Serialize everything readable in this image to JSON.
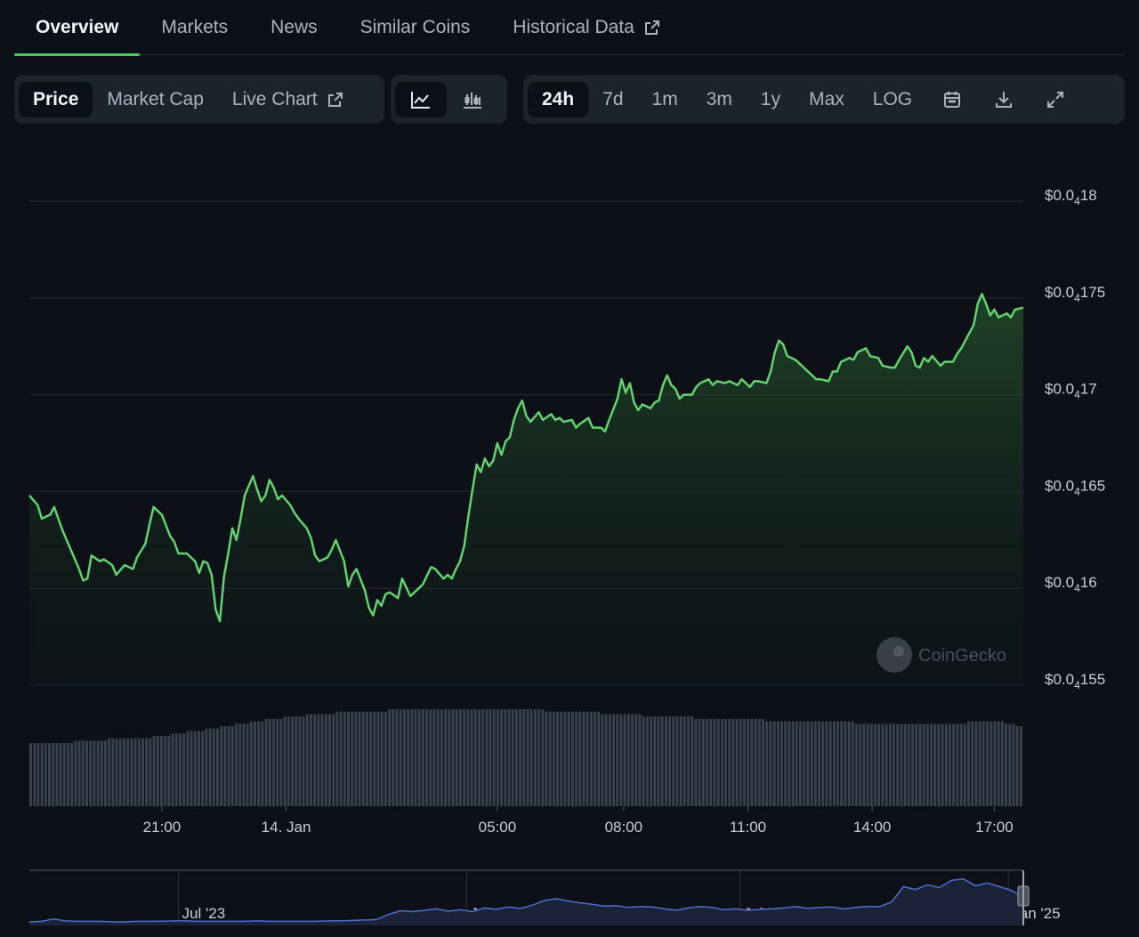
{
  "tabs": [
    {
      "label": "Overview",
      "active": true
    },
    {
      "label": "Markets"
    },
    {
      "label": "News"
    },
    {
      "label": "Similar Coins"
    },
    {
      "label": "Historical Data",
      "external": true
    }
  ],
  "chart_type_buttons": {
    "price": "Price",
    "market_cap": "Market Cap",
    "live_chart": "Live Chart"
  },
  "view_icons": [
    "line-chart-icon",
    "candlestick-icon"
  ],
  "range_buttons": {
    "r24h": "24h",
    "r7d": "7d",
    "r1m": "1m",
    "r3m": "3m",
    "r1y": "1y",
    "max": "Max",
    "log": "LOG"
  },
  "tool_icons": [
    "calendar-icon",
    "download-icon",
    "expand-icon"
  ],
  "watermark": "CoinGecko",
  "colors": {
    "line": "#62d26f",
    "accent": "#4bcc5a",
    "volume": "#3a4250",
    "navigator": "#4a6fd0"
  },
  "chart_data": {
    "type": "line",
    "y_ticks": [
      {
        "pre": "$0.0",
        "sub": "4",
        "post": "18",
        "value": 1.8e-05
      },
      {
        "pre": "$0.0",
        "sub": "4",
        "post": "175",
        "value": 1.75e-05
      },
      {
        "pre": "$0.0",
        "sub": "4",
        "post": "17",
        "value": 1.7e-05
      },
      {
        "pre": "$0.0",
        "sub": "4",
        "post": "165",
        "value": 1.65e-05
      },
      {
        "pre": "$0.0",
        "sub": "4",
        "post": "16",
        "value": 1.6e-05
      },
      {
        "pre": "$0.0",
        "sub": "4",
        "post": "155",
        "value": 1.55e-05
      }
    ],
    "ylim": [
      1.55e-05,
      1.8e-05
    ],
    "x_ticks": [
      {
        "label": "21:00",
        "t": 3.2
      },
      {
        "label": "14. Jan",
        "t": 6.2
      },
      {
        "label": "05:00",
        "t": 11.3
      },
      {
        "label": "08:00",
        "t": 14.35
      },
      {
        "label": "11:00",
        "t": 17.35
      },
      {
        "label": "14:00",
        "t": 20.35
      },
      {
        "label": "17:00",
        "t": 23.3
      }
    ],
    "xlim": [
      0,
      24
    ],
    "series": [
      {
        "values": [
          [
            0.0,
            16.48
          ],
          [
            0.2,
            16.43
          ],
          [
            0.3,
            16.36
          ],
          [
            0.5,
            16.38
          ],
          [
            0.6,
            16.42
          ],
          [
            0.8,
            16.3
          ],
          [
            1.1,
            16.15
          ],
          [
            1.2,
            16.1
          ],
          [
            1.3,
            16.04
          ],
          [
            1.4,
            16.05
          ],
          [
            1.5,
            16.17
          ],
          [
            1.7,
            16.14
          ],
          [
            1.8,
            16.15
          ],
          [
            2.0,
            16.12
          ],
          [
            2.1,
            16.07
          ],
          [
            2.3,
            16.12
          ],
          [
            2.5,
            16.1
          ],
          [
            2.6,
            16.16
          ],
          [
            2.8,
            16.23
          ],
          [
            2.9,
            16.33
          ],
          [
            3.0,
            16.42
          ],
          [
            3.2,
            16.38
          ],
          [
            3.4,
            16.27
          ],
          [
            3.5,
            16.24
          ],
          [
            3.6,
            16.18
          ],
          [
            3.8,
            16.18
          ],
          [
            4.0,
            16.14
          ],
          [
            4.1,
            16.08
          ],
          [
            4.2,
            16.14
          ],
          [
            4.3,
            16.13
          ],
          [
            4.4,
            16.07
          ],
          [
            4.5,
            15.89
          ],
          [
            4.6,
            15.83
          ],
          [
            4.7,
            16.06
          ],
          [
            4.8,
            16.18
          ],
          [
            4.9,
            16.31
          ],
          [
            5.0,
            16.25
          ],
          [
            5.1,
            16.36
          ],
          [
            5.2,
            16.48
          ],
          [
            5.4,
            16.58
          ],
          [
            5.5,
            16.51
          ],
          [
            5.6,
            16.45
          ],
          [
            5.7,
            16.48
          ],
          [
            5.8,
            16.56
          ],
          [
            5.9,
            16.52
          ],
          [
            6.0,
            16.46
          ],
          [
            6.1,
            16.48
          ],
          [
            6.3,
            16.43
          ],
          [
            6.4,
            16.39
          ],
          [
            6.5,
            16.36
          ],
          [
            6.7,
            16.31
          ],
          [
            6.8,
            16.26
          ],
          [
            6.9,
            16.17
          ],
          [
            7.0,
            16.14
          ],
          [
            7.2,
            16.16
          ],
          [
            7.3,
            16.2
          ],
          [
            7.4,
            16.25
          ],
          [
            7.6,
            16.14
          ],
          [
            7.7,
            16.01
          ],
          [
            7.8,
            16.07
          ],
          [
            7.9,
            16.1
          ],
          [
            8.1,
            15.99
          ],
          [
            8.2,
            15.9
          ],
          [
            8.3,
            15.86
          ],
          [
            8.4,
            15.94
          ],
          [
            8.5,
            15.91
          ],
          [
            8.6,
            15.97
          ],
          [
            8.7,
            15.98
          ],
          [
            8.9,
            15.95
          ],
          [
            9.0,
            16.05
          ],
          [
            9.2,
            15.96
          ],
          [
            9.3,
            15.98
          ],
          [
            9.4,
            16.0
          ],
          [
            9.5,
            16.02
          ],
          [
            9.7,
            16.11
          ],
          [
            9.8,
            16.1
          ],
          [
            10.0,
            16.05
          ],
          [
            10.1,
            16.07
          ],
          [
            10.2,
            16.05
          ],
          [
            10.3,
            16.1
          ],
          [
            10.4,
            16.14
          ],
          [
            10.5,
            16.22
          ],
          [
            10.6,
            16.37
          ],
          [
            10.7,
            16.51
          ],
          [
            10.8,
            16.64
          ],
          [
            10.9,
            16.6
          ],
          [
            11.0,
            16.67
          ],
          [
            11.1,
            16.63
          ],
          [
            11.2,
            16.66
          ],
          [
            11.3,
            16.75
          ],
          [
            11.4,
            16.69
          ],
          [
            11.5,
            16.76
          ],
          [
            11.6,
            16.78
          ],
          [
            11.7,
            16.87
          ],
          [
            11.8,
            16.93
          ],
          [
            11.9,
            16.97
          ],
          [
            12.0,
            16.89
          ],
          [
            12.1,
            16.86
          ],
          [
            12.3,
            16.91
          ],
          [
            12.4,
            16.87
          ],
          [
            12.6,
            16.9
          ],
          [
            12.7,
            16.87
          ],
          [
            12.8,
            16.88
          ],
          [
            12.9,
            16.86
          ],
          [
            13.1,
            16.87
          ],
          [
            13.2,
            16.83
          ],
          [
            13.3,
            16.85
          ],
          [
            13.5,
            16.88
          ],
          [
            13.6,
            16.83
          ],
          [
            13.8,
            16.83
          ],
          [
            13.9,
            16.81
          ],
          [
            14.0,
            16.87
          ],
          [
            14.2,
            16.98
          ],
          [
            14.3,
            17.08
          ],
          [
            14.4,
            17.01
          ],
          [
            14.5,
            17.06
          ],
          [
            14.6,
            16.96
          ],
          [
            14.7,
            16.92
          ],
          [
            14.8,
            16.95
          ],
          [
            15.0,
            16.93
          ],
          [
            15.1,
            16.96
          ],
          [
            15.2,
            16.97
          ],
          [
            15.3,
            17.05
          ],
          [
            15.4,
            17.1
          ],
          [
            15.5,
            17.05
          ],
          [
            15.6,
            17.03
          ],
          [
            15.7,
            16.98
          ],
          [
            15.8,
            17.0
          ],
          [
            16.0,
            17.0
          ],
          [
            16.1,
            17.04
          ],
          [
            16.2,
            17.06
          ],
          [
            16.3,
            17.07
          ],
          [
            16.4,
            17.08
          ],
          [
            16.5,
            17.05
          ],
          [
            16.6,
            17.07
          ],
          [
            16.8,
            17.06
          ],
          [
            16.9,
            17.07
          ],
          [
            17.1,
            17.05
          ],
          [
            17.2,
            17.08
          ],
          [
            17.4,
            17.04
          ],
          [
            17.5,
            17.07
          ],
          [
            17.6,
            17.07
          ],
          [
            17.8,
            17.06
          ],
          [
            17.9,
            17.12
          ],
          [
            18.0,
            17.22
          ],
          [
            18.1,
            17.28
          ],
          [
            18.2,
            17.26
          ],
          [
            18.3,
            17.2
          ],
          [
            18.5,
            17.18
          ],
          [
            18.6,
            17.16
          ],
          [
            18.8,
            17.12
          ],
          [
            19.0,
            17.08
          ],
          [
            19.1,
            17.08
          ],
          [
            19.3,
            17.07
          ],
          [
            19.4,
            17.12
          ],
          [
            19.5,
            17.12
          ],
          [
            19.6,
            17.17
          ],
          [
            19.8,
            17.19
          ],
          [
            19.9,
            17.18
          ],
          [
            20.0,
            17.22
          ],
          [
            20.2,
            17.24
          ],
          [
            20.3,
            17.2
          ],
          [
            20.5,
            17.19
          ],
          [
            20.6,
            17.15
          ],
          [
            20.8,
            17.14
          ],
          [
            20.9,
            17.14
          ],
          [
            21.0,
            17.18
          ],
          [
            21.2,
            17.25
          ],
          [
            21.3,
            17.22
          ],
          [
            21.4,
            17.15
          ],
          [
            21.5,
            17.14
          ],
          [
            21.6,
            17.19
          ],
          [
            21.7,
            17.17
          ],
          [
            21.8,
            17.2
          ],
          [
            22.0,
            17.15
          ],
          [
            22.1,
            17.17
          ],
          [
            22.3,
            17.17
          ],
          [
            22.4,
            17.21
          ],
          [
            22.5,
            17.24
          ],
          [
            22.6,
            17.28
          ],
          [
            22.8,
            17.36
          ],
          [
            22.9,
            17.47
          ],
          [
            23.0,
            17.52
          ],
          [
            23.1,
            17.47
          ],
          [
            23.2,
            17.41
          ],
          [
            23.3,
            17.44
          ],
          [
            23.4,
            17.4
          ],
          [
            23.6,
            17.42
          ],
          [
            23.7,
            17.4
          ],
          [
            23.8,
            17.44
          ],
          [
            24.0,
            17.45
          ]
        ]
      }
    ],
    "volume": [
      26,
      26,
      26,
      26,
      26,
      26,
      26,
      26,
      26,
      26,
      26,
      26,
      27,
      27,
      27,
      27,
      27,
      27,
      27,
      27,
      27,
      28,
      28,
      28,
      28,
      28,
      28,
      28,
      28,
      28,
      28,
      28,
      28,
      29,
      29,
      29,
      29,
      29,
      30,
      30,
      30,
      30,
      31,
      31,
      31,
      31,
      31,
      32,
      32,
      32,
      32,
      33,
      33,
      33,
      33,
      34,
      34,
      34,
      34,
      35,
      35,
      35,
      35,
      36,
      36,
      36,
      36,
      36,
      37,
      37,
      37,
      37,
      37,
      37,
      38,
      38,
      38,
      38,
      38,
      38,
      38,
      38,
      39,
      39,
      39,
      39,
      39,
      39,
      39,
      39,
      39,
      39,
      39,
      39,
      39,
      39,
      40,
      40,
      40,
      40,
      40,
      40,
      40,
      40,
      40,
      40,
      40,
      40,
      40,
      40,
      40,
      40,
      40,
      40,
      40,
      40,
      40,
      40,
      40,
      40,
      40,
      40,
      40,
      40,
      40,
      40,
      40,
      40,
      40,
      40,
      40,
      40,
      40,
      40,
      40,
      40,
      40,
      40,
      39,
      39,
      39,
      39,
      39,
      39,
      39,
      39,
      39,
      39,
      39,
      39,
      39,
      39,
      39,
      38,
      38,
      38,
      38,
      38,
      38,
      38,
      38,
      38,
      38,
      38,
      37,
      37,
      37,
      37,
      37,
      37,
      37,
      37,
      37,
      37,
      37,
      37,
      37,
      37,
      36,
      36,
      36,
      36,
      36,
      36,
      36,
      36,
      36,
      36,
      36,
      36,
      36,
      36,
      36,
      36,
      36,
      36,
      36,
      35,
      35,
      35,
      35,
      35,
      35,
      35,
      35,
      35,
      35,
      35,
      35,
      35,
      35,
      35,
      35,
      35,
      35,
      35,
      35,
      35,
      35,
      35,
      35,
      34,
      34,
      34,
      34,
      34,
      34,
      34,
      34,
      34,
      34,
      34,
      34,
      34,
      34,
      34,
      34,
      34,
      34,
      34,
      34,
      34,
      34,
      34,
      34,
      34,
      34,
      34,
      34,
      34,
      34,
      35,
      35,
      35,
      35,
      35,
      35,
      35,
      35,
      35,
      35,
      34,
      34,
      34,
      33,
      33
    ],
    "navigator": {
      "x_ticks": [
        {
          "label": "Jul '23",
          "t": 0.15
        },
        {
          "label": "Jan '24",
          "t": 0.44
        },
        {
          "label": "Jul '24",
          "t": 0.715
        },
        {
          "label": "Jan '25",
          "t": 0.985
        }
      ]
    }
  }
}
